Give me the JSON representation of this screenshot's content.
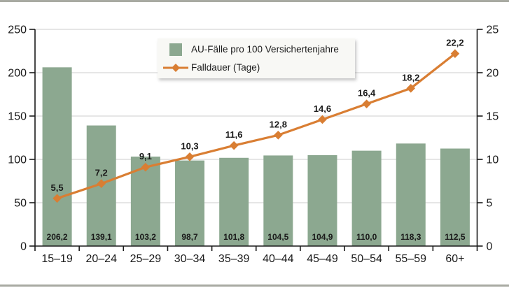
{
  "colors": {
    "bar": "#8ca890",
    "line": "#d97e33",
    "grid": "#d8d8d8",
    "axis": "#1a1a1a",
    "text": "#1a1a1a",
    "bar_value_label": "#ffffff",
    "legend_background": "#f8f8f5",
    "frame_rule": "#a8aaa2"
  },
  "chart_data": {
    "type": "bar+line",
    "title": "",
    "categories": [
      "15–19",
      "20–24",
      "25–29",
      "30–34",
      "35–39",
      "40–44",
      "45–49",
      "50–54",
      "55–59",
      "60+"
    ],
    "series": [
      {
        "name": "AU-Fälle pro 100 Versichertenjahre",
        "type": "bar",
        "axis": "left",
        "color": "#8ca890",
        "values": [
          206.2,
          139.1,
          103.2,
          98.7,
          101.8,
          104.5,
          104.9,
          110.0,
          118.3,
          112.5
        ],
        "value_labels": [
          "206,2",
          "139,1",
          "103,2",
          "98,7",
          "101,8",
          "104,5",
          "104,9",
          "110,0",
          "118,3",
          "112,5"
        ]
      },
      {
        "name": "Falldauer (Tage)",
        "type": "line",
        "axis": "right",
        "color": "#d97e33",
        "marker": "diamond",
        "values": [
          5.5,
          7.2,
          9.1,
          10.3,
          11.6,
          12.8,
          14.6,
          16.4,
          18.2,
          22.2
        ],
        "value_labels": [
          "5,5",
          "7,2",
          "9,1",
          "10,3",
          "11,6",
          "12,8",
          "14,6",
          "16,4",
          "18,2",
          "22,2"
        ]
      }
    ],
    "axes": {
      "left": {
        "min": 0,
        "max": 250,
        "ticks": [
          0,
          50,
          100,
          150,
          200,
          250
        ],
        "tick_labels": [
          "0",
          "50",
          "100",
          "150",
          "200",
          "250"
        ]
      },
      "right": {
        "min": 0,
        "max": 25,
        "ticks": [
          0,
          5,
          10,
          15,
          20,
          25
        ],
        "tick_labels": [
          "0",
          "5",
          "10",
          "15",
          "20",
          "25"
        ]
      }
    },
    "grid": true,
    "legend_position": "top-center"
  }
}
